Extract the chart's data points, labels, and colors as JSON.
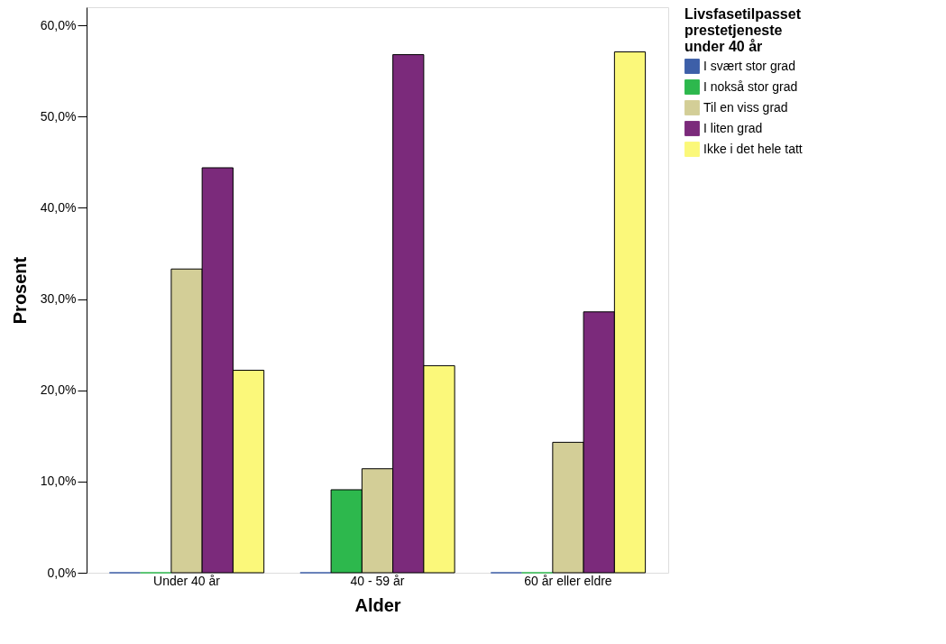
{
  "chart_data": {
    "type": "bar",
    "xlabel": "Alder",
    "ylabel": "Prosent",
    "legend_title": "Livsfasetilpasset prestetjeneste under 40 år",
    "categories": [
      "Under 40 år",
      "40 - 59 år",
      "60 år eller eldre"
    ],
    "series": [
      {
        "name": "I svært stor grad",
        "color": "#3d5fa8",
        "values": [
          0,
          0,
          0
        ]
      },
      {
        "name": "I nokså stor grad",
        "color": "#2db84d",
        "values": [
          0,
          9.1,
          0
        ]
      },
      {
        "name": "Til en viss grad",
        "color": "#d3ce97",
        "values": [
          33.3,
          11.4,
          14.3
        ]
      },
      {
        "name": "I liten grad",
        "color": "#7b2a7b",
        "values": [
          44.4,
          56.8,
          28.6
        ]
      },
      {
        "name": "Ikke i det hele tatt",
        "color": "#fbf87a",
        "values": [
          22.2,
          22.7,
          57.1
        ]
      }
    ],
    "ylim": [
      0,
      62
    ],
    "yticks": [
      {
        "value": 0,
        "label": "0,0%"
      },
      {
        "value": 10,
        "label": "10,0%"
      },
      {
        "value": 20,
        "label": "20,0%"
      },
      {
        "value": 30,
        "label": "30,0%"
      },
      {
        "value": 40,
        "label": "40,0%"
      },
      {
        "value": 50,
        "label": "50,0%"
      },
      {
        "value": 60,
        "label": "60,0%"
      }
    ],
    "grid": false,
    "legend": "top right"
  }
}
